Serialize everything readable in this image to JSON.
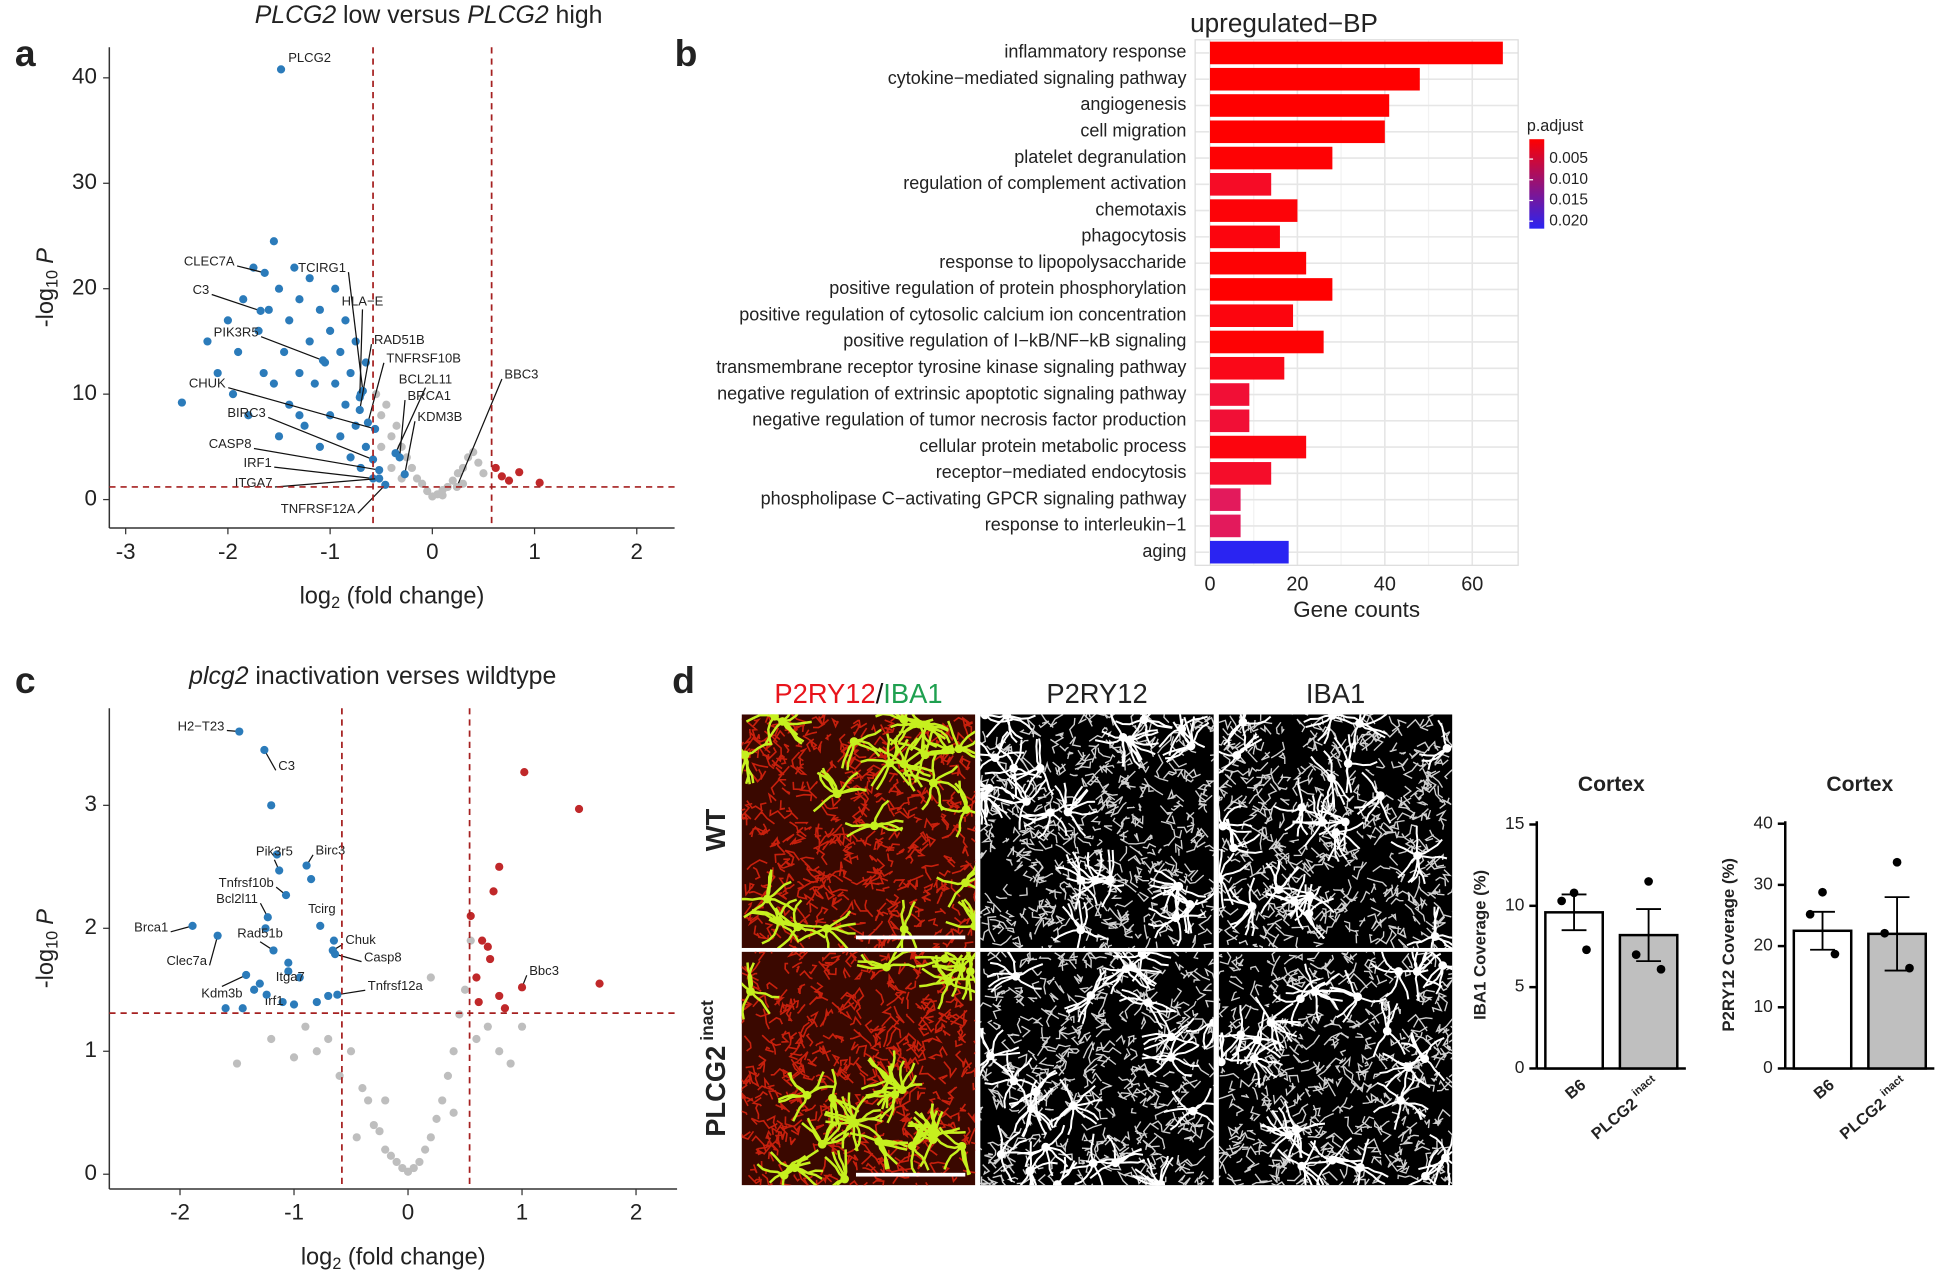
{
  "chart_data": [
    {
      "type": "scatter",
      "panel": "a",
      "title": [
        "PLCG2",
        " low versus ",
        "PLCG2",
        " high"
      ],
      "title_italic": [
        true,
        false,
        true,
        false
      ],
      "xlabel": [
        "log",
        "2",
        " (fold change)"
      ],
      "ylabel": [
        "-log",
        "10",
        "P"
      ],
      "xlim": [
        -3.16,
        2.37
      ],
      "ylim": [
        -2.7,
        42.9
      ],
      "xticks": [
        -3,
        -2,
        -1,
        0,
        1,
        2
      ],
      "yticks": [
        0,
        10,
        20,
        30,
        40
      ],
      "vlines": [
        -0.58,
        0.58
      ],
      "hline": 1.2,
      "threshold_color": "#a52020",
      "point_groups": [
        {
          "color": "#2b7bba",
          "x": [
            -2.45,
            -2.2,
            -2.1,
            -2.0,
            -1.95,
            -1.9,
            -1.85,
            -1.8,
            -1.75,
            -1.7,
            -1.65,
            -1.6,
            -1.55,
            -1.5,
            -1.5,
            -1.45,
            -1.4,
            -1.4,
            -1.35,
            -1.3,
            -1.3,
            -1.25,
            -1.2,
            -1.2,
            -1.15,
            -1.1,
            -1.1,
            -1.05,
            -1.0,
            -1.0,
            -0.95,
            -0.95,
            -0.9,
            -0.9,
            -0.85,
            -0.85,
            -0.8,
            -0.8,
            -0.75,
            -0.75,
            -0.7,
            -0.7,
            -0.65,
            -0.65,
            -1.55,
            -1.3
          ],
          "y": [
            9.2,
            15,
            12,
            17,
            10,
            14,
            19,
            8,
            22,
            16,
            12,
            18,
            24.5,
            6,
            20,
            14,
            17,
            9,
            22,
            12,
            19,
            7,
            15,
            21,
            11,
            18,
            5,
            13,
            16,
            8,
            20,
            11,
            14,
            6,
            17,
            9,
            12,
            4,
            15,
            7,
            10,
            3,
            13,
            5,
            11,
            8
          ]
        },
        {
          "color": "#bebebe",
          "x": [
            -0.55,
            -0.5,
            -0.45,
            -0.4,
            -0.35,
            -0.3,
            -0.25,
            -0.2,
            -0.15,
            -0.1,
            -0.05,
            0,
            0.05,
            0.1,
            0.15,
            0.2,
            0.25,
            0.3,
            0.35,
            0.4,
            0.45,
            0.5,
            -0.5,
            -0.4,
            -0.3,
            0.1,
            0.3
          ],
          "y": [
            10,
            8,
            9,
            6,
            7,
            5,
            4,
            3,
            2,
            1.5,
            0.8,
            0.3,
            0.5,
            0.9,
            1.2,
            1.8,
            2.5,
            3,
            4,
            4.5,
            3.5,
            2.5,
            5,
            3,
            2,
            0.4,
            1.5
          ]
        },
        {
          "color": "#c0282a",
          "x": [
            0.62,
            0.68,
            0.75,
            0.85,
            1.05
          ],
          "y": [
            3.0,
            2.2,
            1.8,
            2.6,
            1.6
          ]
        }
      ],
      "annotations": [
        {
          "text": "PLCG2",
          "x": -1.48,
          "y": 40.8
        },
        {
          "text": "CLEC7A",
          "x": -1.64,
          "y": 21.5
        },
        {
          "text": "C3",
          "x": -1.68,
          "y": 17.9
        },
        {
          "text": "TCIRG1",
          "x": -0.68,
          "y": 10.3
        },
        {
          "text": "HLA−E",
          "x": -0.71,
          "y": 9.7
        },
        {
          "text": "PIK3R5",
          "x": -1.07,
          "y": 13.2
        },
        {
          "text": "RAD51B",
          "x": -0.71,
          "y": 8.5
        },
        {
          "text": "TNFRSF10B",
          "x": -0.63,
          "y": 7.3
        },
        {
          "text": "BCL2L11",
          "x": -0.36,
          "y": 4.4
        },
        {
          "text": "BRCA1",
          "x": -0.32,
          "y": 4.0
        },
        {
          "text": "KDM3B",
          "x": -0.27,
          "y": 2.4
        },
        {
          "text": "CHUK",
          "x": -0.56,
          "y": 6.7
        },
        {
          "text": "BIRC3",
          "x": -0.58,
          "y": 3.8
        },
        {
          "text": "CASP8",
          "x": -0.52,
          "y": 2.8
        },
        {
          "text": "IRF1",
          "x": -0.58,
          "y": 2.0
        },
        {
          "text": "ITGA7",
          "x": -0.52,
          "y": 2.0
        },
        {
          "text": "TNFRSF12A",
          "x": -0.46,
          "y": 1.4
        },
        {
          "text": "BBC3",
          "x": 0.24,
          "y": 1.2,
          "color": "#bebebe"
        }
      ]
    },
    {
      "type": "barh",
      "panel": "b",
      "title": "upregulated−BP",
      "xlabel": "Gene counts",
      "categories": [
        "inflammatory response",
        "cytokine−mediated signaling pathway",
        "angiogenesis",
        "cell migration",
        "platelet degranulation",
        "regulation of complement activation",
        "chemotaxis",
        "phagocytosis",
        "response to lipopolysaccharide",
        "positive regulation of protein phosphorylation",
        "positive regulation of cytosolic calcium ion concentration",
        "positive regulation of I−kB/NF−kB signaling",
        "transmembrane receptor tyrosine kinase signaling pathway",
        "negative regulation of extrinsic apoptotic signaling pathway",
        "negative regulation of tumor necrosis factor production",
        "cellular protein metabolic process",
        "receptor−mediated endocytosis",
        "phospholipase C−activating GPCR signaling pathway",
        "response to interleukin−1",
        "aging"
      ],
      "values": [
        67,
        48,
        41,
        40,
        28,
        14,
        20,
        16,
        22,
        28,
        19,
        26,
        17,
        9,
        9,
        22,
        14,
        7,
        7,
        18
      ],
      "colors": [
        "#ff0000",
        "#ff0000",
        "#ff0000",
        "#ff0000",
        "#fe0204",
        "#f60c26",
        "#fd0308",
        "#fc050e",
        "#fe0204",
        "#ff0000",
        "#fc050e",
        "#fe0204",
        "#fa0818",
        "#f10f36",
        "#f10f36",
        "#fc050e",
        "#f50d2a",
        "#e31a5c",
        "#e31a5c",
        "#2a24f2"
      ],
      "xlim": [
        -3.4,
        70.5
      ],
      "xticks": [
        0,
        20,
        40,
        60
      ],
      "grid": true,
      "colorbar": {
        "title": "p.adjust",
        "lim": [
          0.0002,
          0.0218
        ],
        "ticks": [
          0.005,
          {
            "value": 0.01,
            "label": "0.010"
          },
          0.015,
          {
            "value": 0.02,
            "label": "0.020"
          }
        ],
        "colors": [
          "#ff0000",
          "#2a24f2"
        ]
      }
    },
    {
      "type": "scatter",
      "panel": "c",
      "title": [
        "plcg2",
        " inactivation verses wildtype"
      ],
      "title_italic": [
        true,
        false
      ],
      "xlabel": [
        "log",
        "2",
        " (fold change)"
      ],
      "ylabel": [
        "-log",
        "10",
        "P"
      ],
      "xlim": [
        -2.62,
        2.36
      ],
      "ylim": [
        -0.12,
        3.79
      ],
      "xticks": [
        -2,
        -1,
        0,
        1,
        2
      ],
      "yticks": [
        0,
        1,
        2,
        3
      ],
      "vlines": [
        -0.58,
        0.54
      ],
      "hline": 1.31,
      "threshold_color": "#a52020",
      "point_groups": [
        {
          "color": "#2b7bba",
          "x": [
            -1.6,
            -1.45,
            -1.35,
            -1.3,
            -1.2,
            -1.1,
            -1.0,
            -0.95,
            -0.85,
            -0.8,
            -0.7,
            -0.65,
            -1.05,
            -1.25,
            -1.15
          ],
          "y": [
            1.35,
            1.35,
            1.5,
            1.55,
            3.0,
            1.4,
            1.38,
            1.6,
            2.4,
            1.4,
            1.45,
            1.9,
            1.65,
            2.0,
            2.6
          ]
        },
        {
          "color": "#bebebe",
          "x": [
            -1.5,
            -1.2,
            -1.0,
            -0.9,
            -0.8,
            -0.7,
            -0.6,
            -0.5,
            -0.4,
            -0.35,
            -0.3,
            -0.25,
            -0.2,
            -0.15,
            -0.1,
            -0.05,
            0,
            0.05,
            0.1,
            0.15,
            0.2,
            0.25,
            0.3,
            0.35,
            0.4,
            0.45,
            0.5,
            0.55,
            0.6,
            0.7,
            0.8,
            0.9,
            1.0,
            -0.45,
            0.4,
            -0.2,
            0.2
          ],
          "y": [
            0.9,
            1.1,
            0.95,
            1.2,
            1.0,
            1.1,
            0.8,
            1.0,
            0.7,
            0.6,
            0.4,
            0.35,
            0.2,
            0.15,
            0.1,
            0.05,
            0.02,
            0.05,
            0.1,
            0.2,
            0.3,
            0.45,
            0.6,
            0.8,
            1.0,
            1.3,
            1.5,
            1.9,
            1.1,
            1.2,
            1.0,
            0.9,
            1.2,
            0.3,
            0.5,
            0.6,
            1.6
          ]
        },
        {
          "color": "#c0282a",
          "x": [
            0.55,
            0.6,
            0.65,
            0.7,
            0.75,
            0.8,
            0.8,
            0.85,
            1.02,
            1.5,
            1.68,
            0.62,
            0.72
          ],
          "y": [
            2.1,
            1.6,
            1.9,
            1.85,
            2.3,
            1.45,
            2.5,
            1.35,
            3.27,
            2.97,
            1.55,
            1.4,
            1.75
          ]
        }
      ],
      "annotations": [
        {
          "text": "H2−T23",
          "x": -1.48,
          "y": 3.6
        },
        {
          "text": "C3",
          "x": -1.26,
          "y": 3.45
        },
        {
          "text": "Pik3r5",
          "x": -1.13,
          "y": 2.47
        },
        {
          "text": "Birc3",
          "x": -0.89,
          "y": 2.51
        },
        {
          "text": "Tnfrsf10b",
          "x": -1.07,
          "y": 2.27
        },
        {
          "text": "Bcl2l11",
          "x": -1.23,
          "y": 2.09
        },
        {
          "text": "Tcirg",
          "x": -0.77,
          "y": 2.02
        },
        {
          "text": "Brca1",
          "x": -1.89,
          "y": 2.02
        },
        {
          "text": "Rad51b",
          "x": -1.18,
          "y": 1.82
        },
        {
          "text": "Chuk",
          "x": -0.66,
          "y": 1.82
        },
        {
          "text": "Casp8",
          "x": -0.64,
          "y": 1.79
        },
        {
          "text": "Clec7a",
          "x": -1.67,
          "y": 1.94
        },
        {
          "text": "Itga7",
          "x": -1.05,
          "y": 1.72
        },
        {
          "text": "Kdm3b",
          "x": -1.42,
          "y": 1.62
        },
        {
          "text": "Irf1",
          "x": -1.24,
          "y": 1.46
        },
        {
          "text": "Tnfrsf12a",
          "x": -0.62,
          "y": 1.46
        },
        {
          "text": "Bbc3",
          "x": 1.0,
          "y": 1.52,
          "color": "#c0282a"
        }
      ]
    },
    {
      "type": "bar",
      "title": "Cortex",
      "ylabel": "IBA1 Coverage (%)",
      "categories": [
        "B6",
        "PLCG2 inact"
      ],
      "values": [
        9.6,
        8.2
      ],
      "errors": [
        1.1,
        1.6
      ],
      "points": [
        [
          10.8,
          10.3,
          7.3
        ],
        [
          11.5,
          7.0,
          6.1
        ]
      ],
      "colors": [
        "#ffffff",
        "#bfbfbf"
      ],
      "ylim": [
        0,
        15.2
      ],
      "yticks": [
        0,
        5,
        10,
        15
      ]
    },
    {
      "type": "bar",
      "title": "Cortex",
      "ylabel": "P2RY12 Coverage (%)",
      "categories": [
        "B6",
        "PLCG2 inact"
      ],
      "values": [
        22.5,
        22
      ],
      "errors": [
        3.1,
        6
      ],
      "points": [
        [
          28.8,
          25.2,
          18.7
        ],
        [
          33.7,
          22.1,
          16.4
        ]
      ],
      "colors": [
        "#ffffff",
        "#bfbfbf"
      ],
      "ylim": [
        0,
        40.4
      ],
      "yticks": [
        0,
        10,
        20,
        30,
        40
      ]
    }
  ],
  "image_panel": {
    "panel": "d",
    "merge_header": [
      "P2RY12",
      "/",
      "IBA1"
    ],
    "headers": [
      "P2RY12",
      "IBA1"
    ],
    "rows": [
      [
        "WT"
      ],
      [
        "PLCG2",
        "inact"
      ]
    ],
    "red": "#e8141c",
    "green": "#1fa050"
  }
}
